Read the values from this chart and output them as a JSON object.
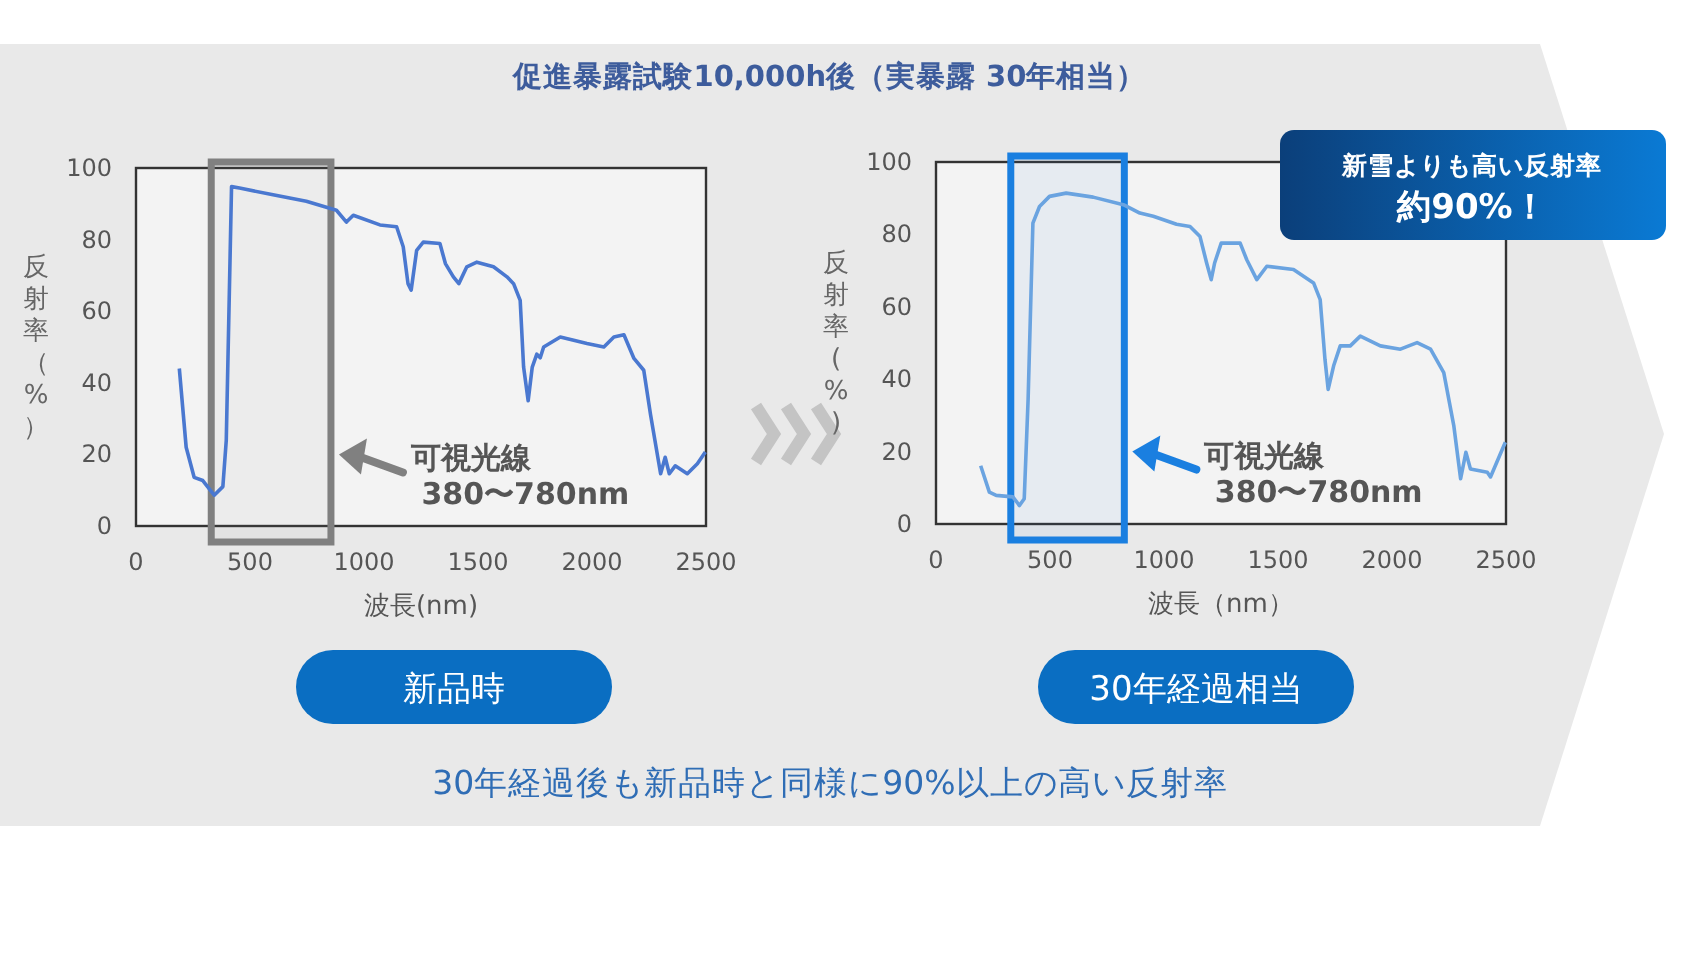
{
  "chart_data": [
    {
      "type": "line",
      "title": "新品時",
      "xlabel": "波長(nm)",
      "ylabel": "反射率（%）",
      "xlim": [
        0,
        2500
      ],
      "xticks": [
        0,
        500,
        1000,
        1500,
        2000,
        2500
      ],
      "ylim": [
        0,
        100
      ],
      "yticks": [
        0,
        20,
        40,
        60,
        80,
        100
      ],
      "series": [
        {
          "color": "#4a78d0",
          "x": [
            190,
            220,
            255,
            293,
            343,
            381,
            396,
            419,
            454,
            601,
            747,
            879,
            923,
            953,
            1070,
            1143,
            1172,
            1193,
            1207,
            1231,
            1260,
            1333,
            1357,
            1392,
            1416,
            1451,
            1495,
            1568,
            1627,
            1656,
            1685,
            1700,
            1720,
            1738,
            1758,
            1773,
            1788,
            1861,
            1978,
            2052,
            2096,
            2140,
            2184,
            2227,
            2257,
            2301,
            2321,
            2339,
            2365,
            2418,
            2462,
            2497
          ],
          "values": [
            44,
            22,
            13.6,
            12.7,
            8.6,
            11,
            24,
            94.8,
            94.4,
            92.5,
            90.7,
            88.2,
            84.9,
            86.8,
            84.1,
            83.6,
            78,
            67.7,
            65.9,
            77,
            79.3,
            78.9,
            73.3,
            69.6,
            67.7,
            72.4,
            73.7,
            72.4,
            69.6,
            67.7,
            63,
            44.4,
            35,
            44.4,
            48,
            47,
            50,
            52.8,
            51,
            50,
            52.8,
            53.4,
            46.8,
            43.5,
            31,
            14.6,
            19.2,
            14.6,
            16.8,
            14.6,
            17.4,
            20.7
          ]
        }
      ],
      "bands": [
        {
          "axis": "x",
          "from": 330,
          "to": 855,
          "label": "可視光線\n380〜780nm",
          "color": "#808080"
        }
      ]
    },
    {
      "type": "line",
      "title": "30年経過相当",
      "xlabel": "波長（nm）",
      "ylabel": "反射率(%)",
      "xlim": [
        0,
        2500
      ],
      "xticks": [
        0,
        500,
        1000,
        1500,
        2000,
        2500
      ],
      "ylim": [
        0,
        100
      ],
      "yticks": [
        0,
        20,
        40,
        60,
        80,
        100
      ],
      "series": [
        {
          "color": "#6aa3e0",
          "x": [
            196,
            234,
            264,
            337,
            366,
            387,
            404,
            425,
            454,
            498,
            571,
            689,
            826,
            894,
            953,
            1055,
            1114,
            1158,
            1187,
            1207,
            1222,
            1251,
            1334,
            1363,
            1407,
            1451,
            1568,
            1656,
            1685,
            1706,
            1720,
            1744,
            1773,
            1817,
            1861,
            1949,
            2037,
            2110,
            2169,
            2227,
            2271,
            2301,
            2324,
            2344,
            2418,
            2432,
            2497
          ],
          "values": [
            16.1,
            8.8,
            7.9,
            7.5,
            5.1,
            7,
            34.5,
            83.1,
            87.7,
            90.5,
            91.4,
            90.3,
            88.1,
            85.9,
            85,
            82.8,
            82.2,
            79.4,
            72.1,
            67.5,
            72.1,
            77.6,
            77.6,
            73,
            67.5,
            71.2,
            70.3,
            66.6,
            62,
            45.5,
            37.2,
            43.7,
            49.2,
            49.2,
            51.9,
            49.2,
            48.3,
            50.1,
            48.3,
            41.8,
            27.2,
            12.5,
            19.8,
            15.2,
            14.3,
            13,
            22.6
          ]
        }
      ],
      "bands": [
        {
          "axis": "x",
          "from": 328,
          "to": 826,
          "label": "可視光線\n380〜780nm",
          "color": "#1a7fe0"
        }
      ],
      "annotations": [
        "新雪よりも高い反射率",
        "約90%！"
      ]
    },
    {
      "type": "other",
      "title": "促進暴露試験10,000h後（実暴露 30年相当）",
      "annotations": [
        "30年経過後も新品時と同様に90%以上の高い反射率"
      ]
    }
  ]
}
